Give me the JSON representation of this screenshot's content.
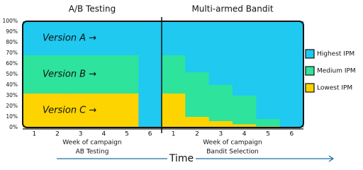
{
  "chart_data": [
    {
      "type": "stacked-bar",
      "title": "A/B Testing",
      "xlabel": "Week of campaign",
      "caption": "AB Testing",
      "categories": [
        "1",
        "2",
        "3",
        "4",
        "5",
        "6"
      ],
      "ylim": [
        0,
        100
      ],
      "yticks": [
        {
          "value": 0,
          "label": "0%"
        },
        {
          "value": 10,
          "label": "10%"
        },
        {
          "value": 20,
          "label": "20%"
        },
        {
          "value": 30,
          "label": "30%"
        },
        {
          "value": 40,
          "label": "40%"
        },
        {
          "value": 50,
          "label": "50%"
        },
        {
          "value": 60,
          "label": "60%"
        },
        {
          "value": 70,
          "label": "70%"
        },
        {
          "value": 80,
          "label": "80%"
        },
        {
          "value": 90,
          "label": "90%"
        },
        {
          "value": 100,
          "label": "100%"
        }
      ],
      "series": [
        {
          "name": "Version C →",
          "color": "#fdd300",
          "values": [
            32,
            32,
            32,
            32,
            32,
            0
          ]
        },
        {
          "name": "Version B →",
          "color": "#2ee39b",
          "values": [
            36,
            36,
            36,
            36,
            36,
            0
          ]
        },
        {
          "name": "Version A →",
          "color": "#1fc9f0",
          "values": [
            32,
            32,
            32,
            32,
            32,
            100
          ]
        }
      ]
    },
    {
      "type": "stacked-bar",
      "title": "Multi-armed Bandit",
      "xlabel": "Week of campaign",
      "caption": "Bandit Selection",
      "categories": [
        "1",
        "2",
        "3",
        "4",
        "5",
        "6"
      ],
      "ylim": [
        0,
        100
      ],
      "legend": "right",
      "series": [
        {
          "name": "Lowest IPM",
          "color": "#fdd300",
          "values": [
            32,
            10,
            6,
            3,
            1,
            0
          ]
        },
        {
          "name": "Medium IPM",
          "color": "#2ee39b",
          "values": [
            36,
            42,
            34,
            27,
            7,
            0
          ]
        },
        {
          "name": "Highest IPM",
          "color": "#1fc9f0",
          "values": [
            32,
            48,
            60,
            70,
            92,
            100
          ]
        }
      ]
    }
  ],
  "footer": "Time"
}
